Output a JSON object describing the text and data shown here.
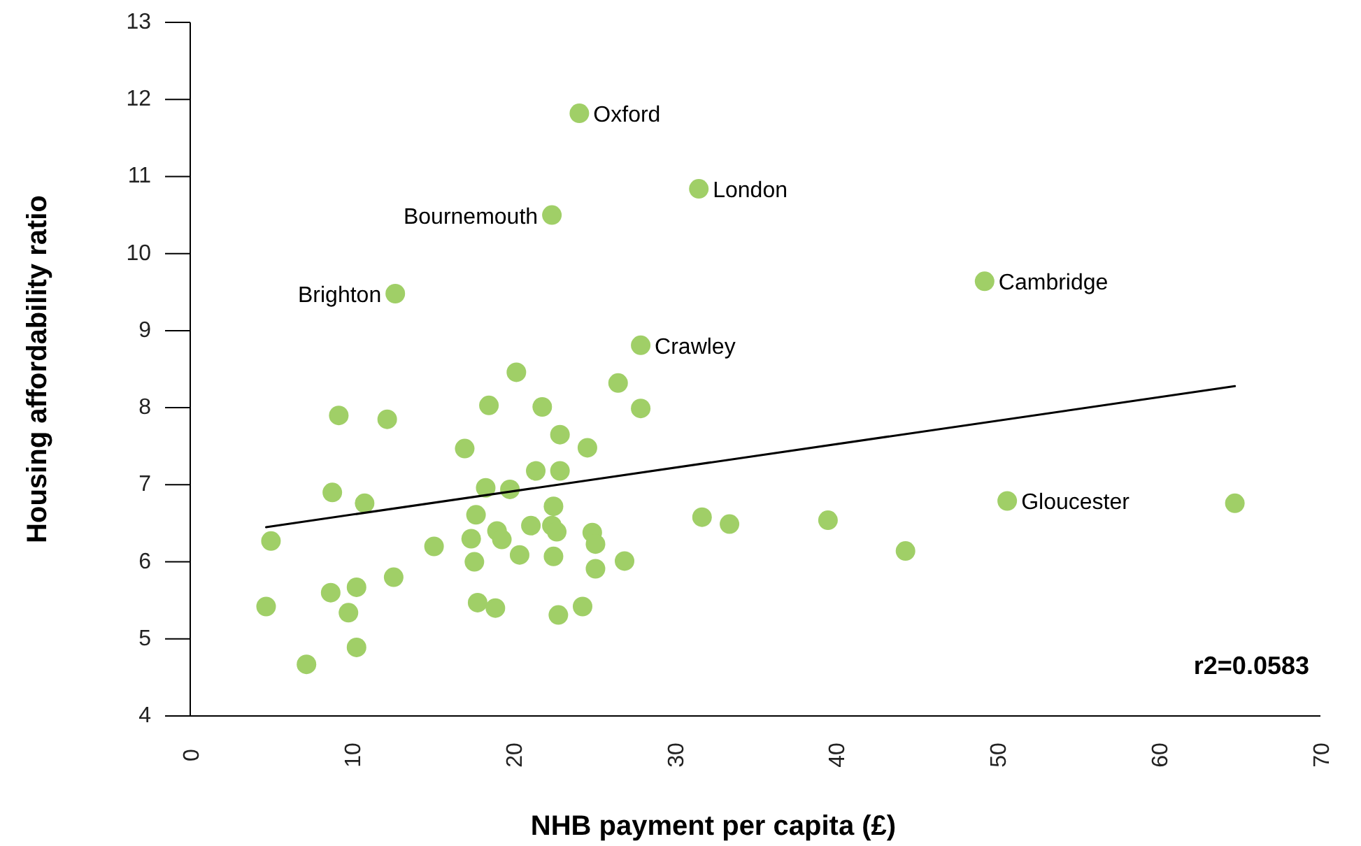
{
  "chart_data": {
    "type": "scatter",
    "xlabel": "NHB payment per capita (£)",
    "ylabel": "Housing affordability ratio",
    "xlim": [
      0,
      70
    ],
    "xticks": [
      0,
      10,
      20,
      30,
      40,
      50,
      60,
      70
    ],
    "ylim": [
      4,
      13
    ],
    "yticks": [
      4,
      5,
      6,
      7,
      8,
      9,
      10,
      11,
      12,
      13
    ],
    "grid": false,
    "marker": "circle",
    "series": [
      {
        "color": "#a0cf67",
        "x": [
          24.1,
          31.5,
          22.4,
          12.7,
          49.2,
          27.9,
          50.6,
          64.7,
          20.2,
          26.5,
          18.5,
          21.8,
          27.9,
          9.2,
          12.2,
          22.9,
          24.6,
          17.0,
          21.4,
          22.9,
          18.3,
          19.8,
          8.8,
          10.8,
          22.5,
          17.7,
          31.7,
          33.4,
          39.5,
          21.1,
          22.4,
          19.0,
          19.3,
          24.9,
          22.7,
          17.4,
          5.0,
          15.1,
          25.1,
          44.3,
          20.4,
          22.5,
          17.6,
          26.9,
          25.1,
          12.6,
          10.3,
          8.7,
          17.8,
          18.9,
          4.7,
          24.3,
          9.8,
          22.8,
          10.3,
          7.2
        ],
        "values": [
          11.82,
          10.84,
          10.5,
          9.48,
          9.64,
          8.81,
          6.79,
          6.76,
          8.46,
          8.32,
          8.03,
          8.01,
          7.99,
          7.9,
          7.85,
          7.65,
          7.48,
          7.47,
          7.18,
          7.18,
          6.96,
          6.94,
          6.9,
          6.76,
          6.72,
          6.61,
          6.58,
          6.49,
          6.54,
          6.47,
          6.47,
          6.4,
          6.29,
          6.38,
          6.39,
          6.3,
          6.27,
          6.2,
          6.23,
          6.14,
          6.09,
          6.07,
          6.0,
          6.01,
          5.91,
          5.8,
          5.67,
          5.6,
          5.47,
          5.4,
          5.42,
          5.42,
          5.34,
          5.31,
          4.89,
          4.67
        ]
      },
      {
        "type": "line",
        "color": "#000000",
        "marker": "none",
        "line_style": "solid",
        "x": [
          4.7,
          64.7
        ],
        "values": [
          6.45,
          8.28
        ]
      }
    ],
    "annotations": [
      {
        "text": "Oxford",
        "x": 24.1,
        "y": 11.82
      },
      {
        "text": "London",
        "x": 31.5,
        "y": 10.84
      },
      {
        "text": "Bournemouth",
        "x": 22.4,
        "y": 10.5
      },
      {
        "text": "Brighton",
        "x": 12.7,
        "y": 9.48
      },
      {
        "text": "Cambridge",
        "x": 49.2,
        "y": 9.64
      },
      {
        "text": "Crawley",
        "x": 27.9,
        "y": 8.81
      },
      {
        "text": "Gloucester",
        "x": 50.6,
        "y": 6.79
      },
      "r2=0.0583"
    ]
  }
}
